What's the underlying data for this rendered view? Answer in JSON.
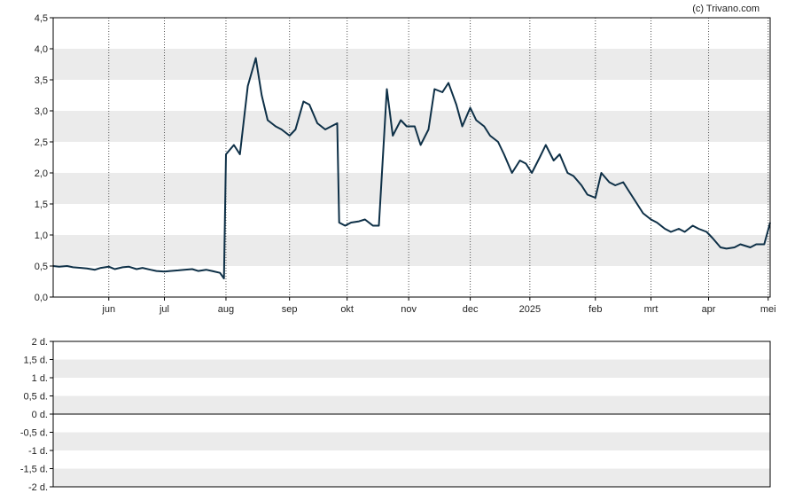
{
  "credit": "(c) Trivano.com",
  "colors": {
    "line": "#0e3047",
    "band": "#ebebeb",
    "axis": "#000000",
    "vgrid": "#555555"
  },
  "chart_data": [
    {
      "type": "line",
      "title": "",
      "ylim": [
        0,
        4.5
      ],
      "yticks": [
        "0,0",
        "0,5",
        "1,0",
        "1,5",
        "2,0",
        "2,5",
        "3,0",
        "3,5",
        "4,0",
        "4,5"
      ],
      "ytick_values": [
        0,
        0.5,
        1.0,
        1.5,
        2.0,
        2.5,
        3.0,
        3.5,
        4.0,
        4.5
      ],
      "xlim": [
        "2024-05-06",
        "2025-05-02"
      ],
      "xticks": [
        {
          "label": "jun",
          "date": "2024-06-03"
        },
        {
          "label": "jul",
          "date": "2024-07-01"
        },
        {
          "label": "aug",
          "date": "2024-08-01"
        },
        {
          "label": "sep",
          "date": "2024-09-02"
        },
        {
          "label": "okt",
          "date": "2024-10-01"
        },
        {
          "label": "nov",
          "date": "2024-11-01"
        },
        {
          "label": "dec",
          "date": "2024-12-02"
        },
        {
          "label": "2025",
          "date": "2025-01-01"
        },
        {
          "label": "feb",
          "date": "2025-02-03"
        },
        {
          "label": "mrt",
          "date": "2025-03-03"
        },
        {
          "label": "apr",
          "date": "2025-04-01"
        },
        {
          "label": "mei",
          "date": "2025-05-01"
        }
      ],
      "grid": "vertical dotted lines at month starts, alternating horizontal bands",
      "series": [
        {
          "x": [
            "2024-05-06",
            "2024-05-09",
            "2024-05-13",
            "2024-05-16",
            "2024-05-20",
            "2024-05-23",
            "2024-05-27",
            "2024-05-30",
            "2024-06-03",
            "2024-06-06",
            "2024-06-10",
            "2024-06-13",
            "2024-06-17",
            "2024-06-20",
            "2024-06-24",
            "2024-06-27",
            "2024-07-01",
            "2024-07-04",
            "2024-07-08",
            "2024-07-11",
            "2024-07-15",
            "2024-07-18",
            "2024-07-22",
            "2024-07-25",
            "2024-07-29",
            "2024-07-31",
            "2024-08-01",
            "2024-08-05",
            "2024-08-08",
            "2024-08-12",
            "2024-08-16",
            "2024-08-19",
            "2024-08-22",
            "2024-08-26",
            "2024-08-29",
            "2024-09-02",
            "2024-09-05",
            "2024-09-09",
            "2024-09-12",
            "2024-09-16",
            "2024-09-20",
            "2024-09-23",
            "2024-09-26",
            "2024-09-27",
            "2024-09-30",
            "2024-10-03",
            "2024-10-07",
            "2024-10-10",
            "2024-10-14",
            "2024-10-17",
            "2024-10-21",
            "2024-10-24",
            "2024-10-28",
            "2024-10-31",
            "2024-11-04",
            "2024-11-07",
            "2024-11-11",
            "2024-11-14",
            "2024-11-18",
            "2024-11-21",
            "2024-11-25",
            "2024-11-28",
            "2024-12-02",
            "2024-12-05",
            "2024-12-09",
            "2024-12-12",
            "2024-12-16",
            "2024-12-19",
            "2024-12-23",
            "2024-12-27",
            "2024-12-30",
            "2025-01-02",
            "2025-01-06",
            "2025-01-09",
            "2025-01-13",
            "2025-01-16",
            "2025-01-20",
            "2025-01-23",
            "2025-01-27",
            "2025-01-30",
            "2025-02-03",
            "2025-02-06",
            "2025-02-10",
            "2025-02-13",
            "2025-02-17",
            "2025-02-20",
            "2025-02-24",
            "2025-02-27",
            "2025-03-03",
            "2025-03-06",
            "2025-03-10",
            "2025-03-13",
            "2025-03-17",
            "2025-03-20",
            "2025-03-24",
            "2025-03-27",
            "2025-03-31",
            "2025-04-03",
            "2025-04-07",
            "2025-04-10",
            "2025-04-14",
            "2025-04-17",
            "2025-04-22",
            "2025-04-25",
            "2025-04-29",
            "2025-05-02"
          ],
          "y": [
            0.5,
            0.49,
            0.5,
            0.48,
            0.47,
            0.46,
            0.44,
            0.47,
            0.49,
            0.45,
            0.48,
            0.49,
            0.45,
            0.47,
            0.44,
            0.42,
            0.41,
            0.42,
            0.43,
            0.44,
            0.45,
            0.42,
            0.44,
            0.42,
            0.39,
            0.3,
            2.3,
            2.45,
            2.3,
            3.4,
            3.85,
            3.25,
            2.85,
            2.75,
            2.7,
            2.6,
            2.7,
            3.15,
            3.1,
            2.8,
            2.7,
            2.75,
            2.8,
            1.2,
            1.15,
            1.2,
            1.22,
            1.25,
            1.15,
            1.15,
            3.35,
            2.6,
            2.85,
            2.75,
            2.75,
            2.45,
            2.7,
            3.35,
            3.3,
            3.45,
            3.1,
            2.75,
            3.05,
            2.85,
            2.75,
            2.6,
            2.5,
            2.3,
            2.0,
            2.2,
            2.15,
            2.0,
            2.25,
            2.45,
            2.2,
            2.3,
            2.0,
            1.95,
            1.8,
            1.65,
            1.6,
            2.0,
            1.85,
            1.8,
            1.85,
            1.7,
            1.5,
            1.35,
            1.25,
            1.2,
            1.1,
            1.05,
            1.1,
            1.05,
            1.15,
            1.1,
            1.05,
            0.95,
            0.8,
            0.78,
            0.8,
            0.85,
            0.8,
            0.85,
            0.85,
            1.2
          ]
        }
      ]
    },
    {
      "type": "line",
      "title": "",
      "yticks": [
        "2 d.",
        "1,5 d.",
        "1 d.",
        "0,5 d.",
        "0 d.",
        "-0,5 d.",
        "-1 d.",
        "-1,5 d.",
        "-2 d."
      ],
      "ytick_values": [
        2,
        1.5,
        1,
        0.5,
        0,
        -0.5,
        -1,
        -1.5,
        -2
      ],
      "ylim": [
        -2,
        2
      ],
      "series": [
        {
          "baseline": 0
        }
      ]
    }
  ]
}
